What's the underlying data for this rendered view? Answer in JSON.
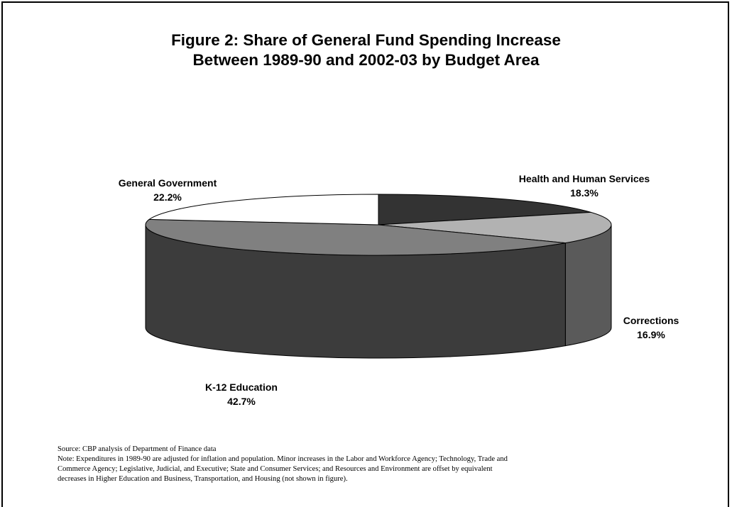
{
  "title_line1": "Figure 2: Share of General Fund Spending Increase",
  "title_line2": "Between 1989-90 and 2002-03 by Budget Area",
  "source": "Source: CBP analysis of Department of Finance data",
  "note_lines": [
    "Note: Expenditures in 1989-90 are adjusted for inflation and population.  Minor increases in the Labor and Workforce Agency; Technology, Trade and",
    "Commerce Agency; Legislative, Judicial, and Executive; State and Consumer Services; and Resources and Environment are offset by equivalent",
    "decreases in Higher Education and Business, Transportation, and Housing (not shown in figure)."
  ],
  "chart_data": {
    "type": "pie",
    "style": "3d",
    "title": "Figure 2: Share of General Fund Spending Increase Between 1989-90 and 2002-03 by Budget Area",
    "slices": [
      {
        "name": "Health and Human Services",
        "value": 18.3,
        "label": "18.3%",
        "color": "#333333",
        "side_color": "#1e1e1e"
      },
      {
        "name": "Corrections",
        "value": 16.9,
        "label": "16.9%",
        "color": "#b2b2b2",
        "side_color": "#5a5a5a"
      },
      {
        "name": "K-12 Education",
        "value": 42.7,
        "label": "42.7%",
        "color": "#808080",
        "side_color": "#3c3c3c"
      },
      {
        "name": "General Government",
        "value": 22.2,
        "label": "22.2%",
        "color": "#ffffff",
        "side_color": "#d9d9d9"
      }
    ]
  }
}
